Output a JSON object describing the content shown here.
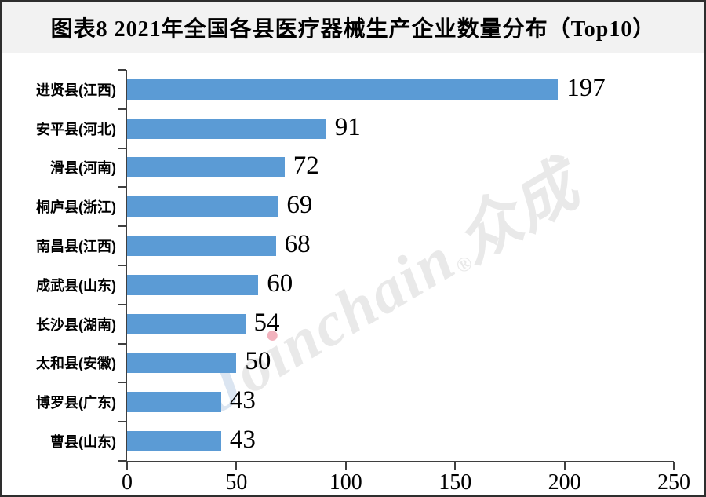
{
  "title": "图表8 2021年全国各县医疗器械生产企业数量分布（Top10）",
  "watermark": {
    "text": "Joinchain®众成",
    "seg_j": "J",
    "seg_o": "o",
    "seg_i_dotless": "ı",
    "seg_rest": "nchain",
    "reg": "®",
    "seg_cjk": "众成"
  },
  "colors": {
    "bar": "#5b9bd5",
    "titlebar_bg": "#f2f2f2",
    "axis": "#3f3f3f",
    "watermark_gray": "#e9e9e9",
    "watermark_j_blue": "#dbe5f1",
    "watermark_dot_pink": "#f2b3be",
    "frame_border": "#2e2e2e"
  },
  "chart_data": {
    "type": "bar",
    "orientation": "horizontal",
    "title": "图表8 2021年全国各县医疗器械生产企业数量分布（Top10）",
    "categories": [
      "进贤县(江西)",
      "安平县(河北)",
      "滑县(河南)",
      "桐庐县(浙江)",
      "南昌县(江西)",
      "成武县(山东)",
      "长沙县(湖南)",
      "太和县(安徽)",
      "博罗县(广东)",
      "曹县(山东)"
    ],
    "values": [
      197,
      91,
      72,
      69,
      68,
      60,
      54,
      50,
      43,
      43
    ],
    "xlim": [
      0,
      250
    ],
    "x_ticks": [
      0,
      50,
      100,
      150,
      200,
      250
    ],
    "xlabel": "",
    "ylabel": "",
    "grid": false,
    "legend": false,
    "value_labels_shown": true
  }
}
